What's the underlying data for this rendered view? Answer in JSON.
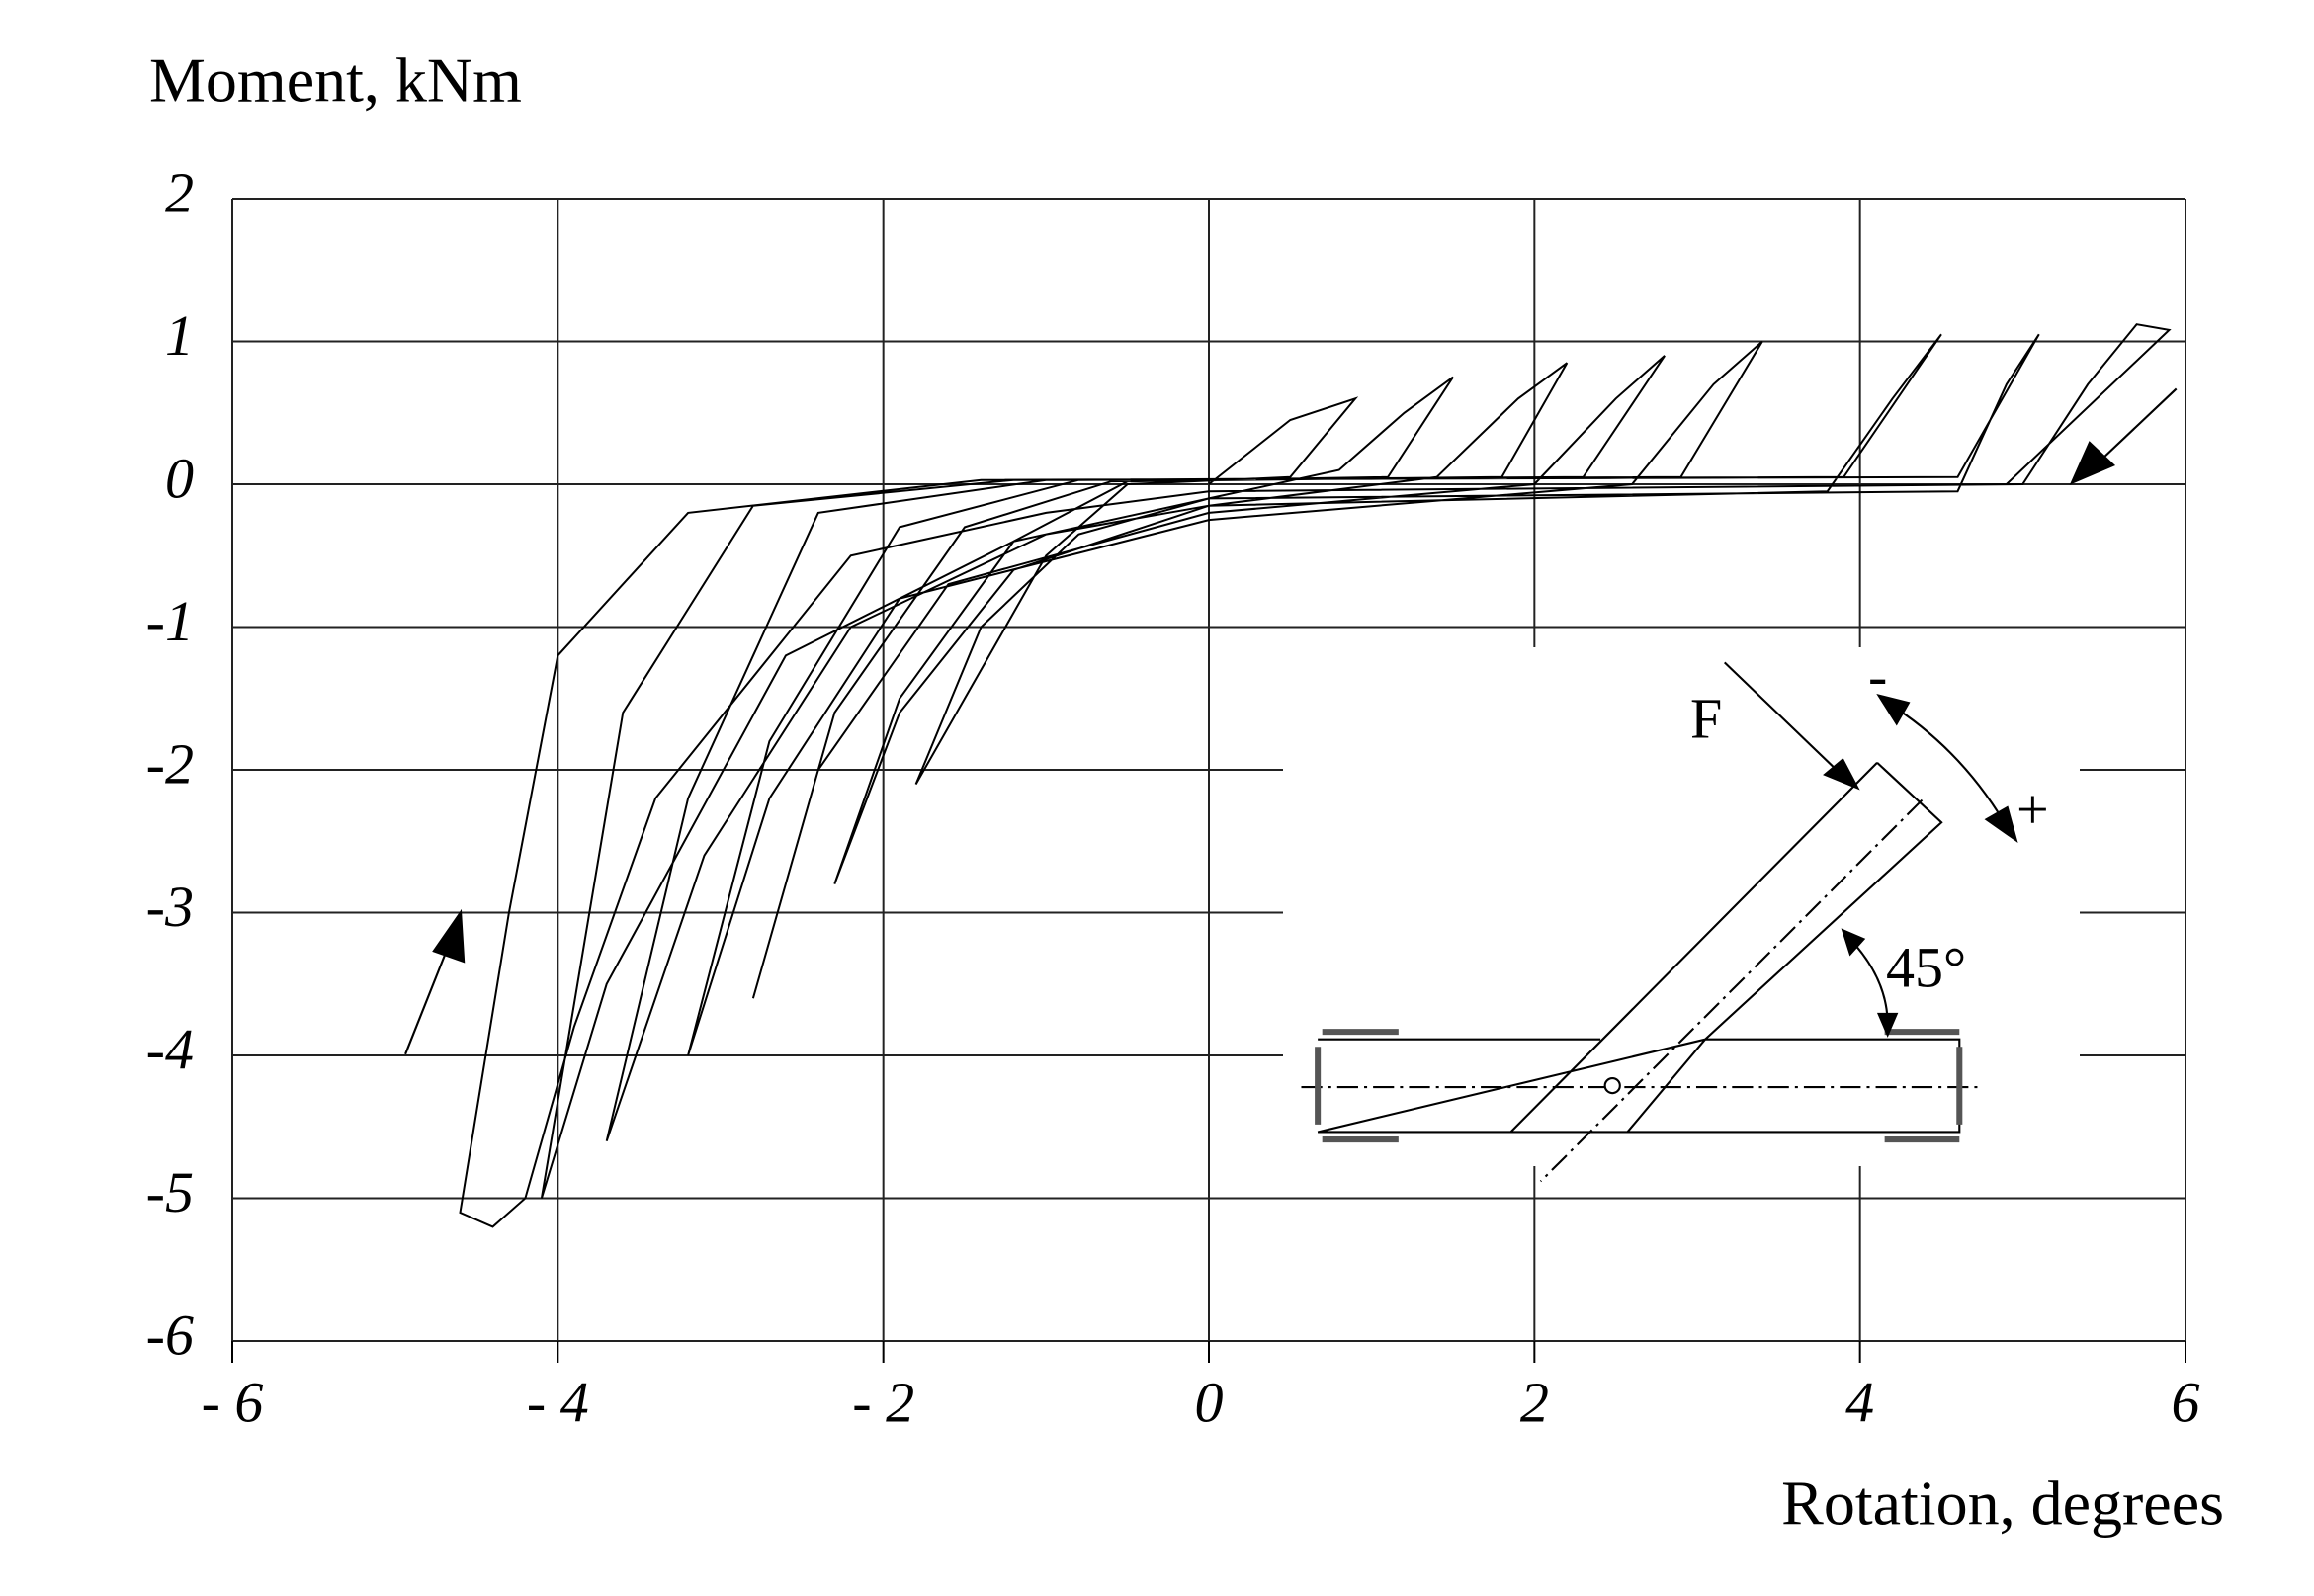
{
  "chart_data": {
    "type": "line",
    "ylabel": "Moment, kNm",
    "xlabel": "Rotation, degrees",
    "xlim": [
      -6,
      6
    ],
    "ylim": [
      -6,
      2
    ],
    "xticks": [
      {
        "value": -6,
        "label": "- 6"
      },
      {
        "value": -4,
        "label": "- 4"
      },
      {
        "value": -2,
        "label": "- 2"
      },
      0,
      2,
      4,
      6
    ],
    "yticks": [
      -6,
      -5,
      -4,
      -3,
      -2,
      -1,
      0,
      1,
      2
    ],
    "grid": true,
    "annotations": [
      "F",
      "-",
      "+",
      "45°"
    ],
    "x": [
      0,
      0.5,
      0.9,
      0.5,
      -0.5,
      -1.0,
      -1.5,
      -1.8,
      -1.4,
      -0.8,
      0,
      0.8,
      1.2,
      1.5,
      1.1,
      -0.5,
      -1.2,
      -1.9,
      -2.3,
      -1.9,
      -1.2,
      0,
      1.4,
      1.9,
      2.2,
      1.8,
      -0.6,
      -1.5,
      -2.3,
      -2.8,
      -2.4,
      -1.6,
      0,
      2.0,
      2.5,
      2.8,
      2.3,
      -0.8,
      -1.9,
      -2.7,
      -3.2,
      -2.7,
      -1.9,
      0,
      2.6,
      3.1,
      3.4,
      2.9,
      -1.0,
      -2.4,
      -3.2,
      -3.7,
      -3.1,
      -2.2,
      -1.0,
      0,
      3.8,
      4.2,
      4.5,
      3.9,
      -1.2,
      -2.8,
      -3.6,
      -4.1,
      -3.7,
      -2.6,
      -1.2,
      0,
      4.6,
      4.9,
      5.1,
      4.6,
      -1.4,
      -3.2,
      -4.0,
      -4.3,
      -4.6,
      -4.4,
      -4.2,
      -3.9,
      -3.4,
      -2.2,
      -1.0,
      0,
      5.0,
      5.4,
      5.7,
      5.9,
      4.9
    ],
    "series": [
      {
        "color": "#000000",
        "values": [
          0,
          0.45,
          0.6,
          0.05,
          0,
          -0.5,
          -1.5,
          -2.1,
          -1.0,
          -0.35,
          -0.1,
          0.1,
          0.5,
          0.75,
          0.05,
          0.02,
          -0.4,
          -1.5,
          -2.8,
          -1.6,
          -0.6,
          -0.15,
          0.05,
          0.6,
          0.85,
          0.05,
          0.02,
          -0.3,
          -1.6,
          -3.6,
          -2.0,
          -0.7,
          -0.2,
          0,
          0.6,
          0.9,
          0.05,
          0.03,
          -0.3,
          -1.8,
          -4.0,
          -2.2,
          -0.8,
          -0.25,
          0,
          0.7,
          1.0,
          0.05,
          0.03,
          -0.2,
          -2.2,
          -4.6,
          -2.6,
          -1.0,
          -0.35,
          -0.15,
          -0.05,
          0.6,
          1.05,
          0.05,
          0.03,
          -0.15,
          -1.6,
          -5.0,
          -3.5,
          -1.2,
          -0.4,
          -0.1,
          -0.05,
          0.7,
          1.05,
          0.05,
          0.03,
          -0.2,
          -1.2,
          -3.0,
          -5.1,
          -5.2,
          -5.0,
          -3.8,
          -2.2,
          -0.5,
          -0.2,
          -0.05,
          0,
          0.7,
          1.12,
          1.08,
          0
        ]
      }
    ]
  }
}
